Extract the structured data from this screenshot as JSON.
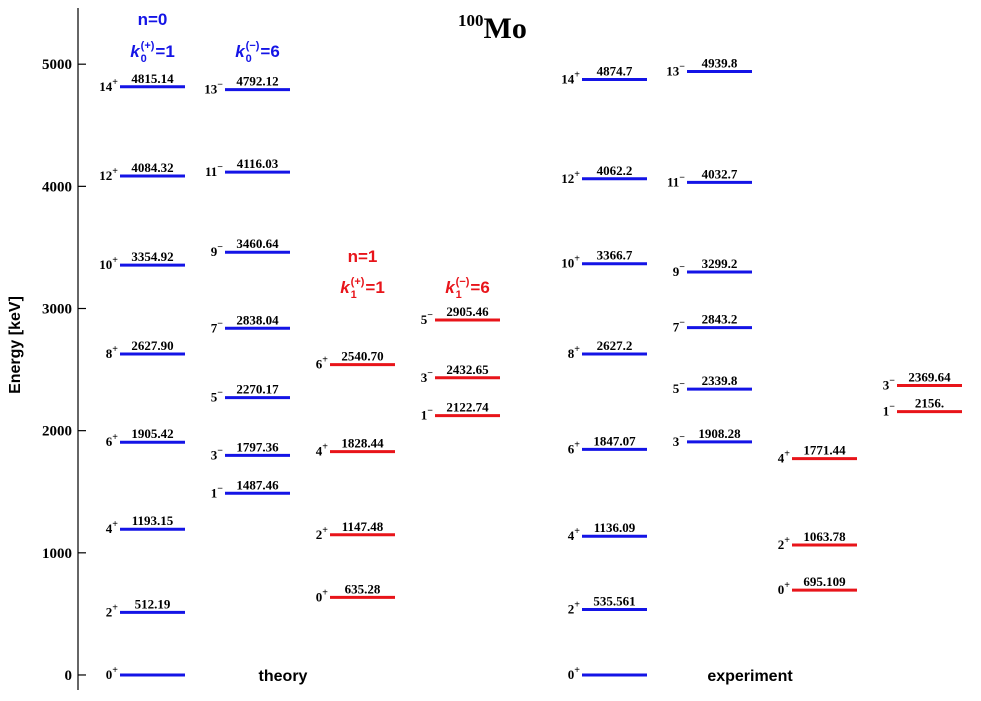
{
  "chart_data": {
    "type": "level-scheme",
    "title": {
      "mass": "100",
      "element": "Mo"
    },
    "ylabel": "Energy [keV]",
    "ylim": [
      -123,
      5460
    ],
    "yticks": [
      0,
      1000,
      2000,
      3000,
      4000,
      5000
    ],
    "group_labels": [
      "theory",
      "experiment"
    ],
    "columns": [
      {
        "color": "#1414e6",
        "n": "n=0",
        "k": {
          "symbol": "k",
          "sub": "0",
          "sup": "(+)",
          "rhs": "=1"
        },
        "values": [
          0,
          512.19,
          1193.15,
          1905.42,
          2627.9,
          3354.92,
          4084.32,
          4815.14
        ],
        "value_labels": [
          null,
          "512.19",
          "1193.15",
          "1905.42",
          "2627.90",
          "3354.92",
          "4084.32",
          "4815.14"
        ],
        "spins": [
          [
            "0",
            "+"
          ],
          [
            "2",
            "+"
          ],
          [
            "4",
            "+"
          ],
          [
            "6",
            "+"
          ],
          [
            "8",
            "+"
          ],
          [
            "10",
            "+"
          ],
          [
            "12",
            "+"
          ],
          [
            "14",
            "+"
          ]
        ]
      },
      {
        "color": "#1414e6",
        "k": {
          "symbol": "k",
          "sub": "0",
          "sup": "(−)",
          "rhs": "=6"
        },
        "values": [
          1487.46,
          1797.36,
          2270.17,
          2838.04,
          3460.64,
          4116.03,
          4792.12
        ],
        "value_labels": [
          "1487.46",
          "1797.36",
          "2270.17",
          "2838.04",
          "3460.64",
          "4116.03",
          "4792.12"
        ],
        "spins": [
          [
            "1",
            "−"
          ],
          [
            "3",
            "−"
          ],
          [
            "5",
            "−"
          ],
          [
            "7",
            "−"
          ],
          [
            "9",
            "−"
          ],
          [
            "11",
            "−"
          ],
          [
            "13",
            "−"
          ]
        ]
      },
      {
        "color": "#e8141a",
        "n": "n=1",
        "k": {
          "symbol": "k",
          "sub": "1",
          "sup": "(+)",
          "rhs": "=1"
        },
        "values": [
          635.28,
          1147.48,
          1828.44,
          2540.7
        ],
        "value_labels": [
          "635.28",
          "1147.48",
          "1828.44",
          "2540.70"
        ],
        "spins": [
          [
            "0",
            "+"
          ],
          [
            "2",
            "+"
          ],
          [
            "4",
            "+"
          ],
          [
            "6",
            "+"
          ]
        ]
      },
      {
        "color": "#e8141a",
        "k": {
          "symbol": "k",
          "sub": "1",
          "sup": "(−)",
          "rhs": "=6"
        },
        "values": [
          2122.74,
          2432.65,
          2905.46
        ],
        "value_labels": [
          "2122.74",
          "2432.65",
          "2905.46"
        ],
        "spins": [
          [
            "1",
            "−"
          ],
          [
            "3",
            "−"
          ],
          [
            "5",
            "−"
          ]
        ]
      },
      {
        "color": "#1414e6",
        "values": [
          0,
          535.561,
          1136.09,
          1847.07,
          2627.2,
          3366.7,
          4062.2,
          4874.7
        ],
        "value_labels": [
          null,
          "535.561",
          "1136.09",
          "1847.07",
          "2627.2",
          "3366.7",
          "4062.2",
          "4874.7"
        ],
        "spins": [
          [
            "0",
            "+"
          ],
          [
            "2",
            "+"
          ],
          [
            "4",
            "+"
          ],
          [
            "6",
            "+"
          ],
          [
            "8",
            "+"
          ],
          [
            "10",
            "+"
          ],
          [
            "12",
            "+"
          ],
          [
            "14",
            "+"
          ]
        ]
      },
      {
        "color": "#1414e6",
        "values": [
          1908.28,
          2339.8,
          2843.2,
          3299.2,
          4032.7,
          4939.8
        ],
        "value_labels": [
          "1908.28",
          "2339.8",
          "2843.2",
          "3299.2",
          "4032.7",
          "4939.8"
        ],
        "spins": [
          [
            "3",
            "−"
          ],
          [
            "5",
            "−"
          ],
          [
            "7",
            "−"
          ],
          [
            "9",
            "−"
          ],
          [
            "11",
            "−"
          ],
          [
            "13",
            "−"
          ]
        ]
      },
      {
        "color": "#e8141a",
        "values": [
          695.109,
          1063.78,
          1771.44
        ],
        "value_labels": [
          "695.109",
          "1063.78",
          "1771.44"
        ],
        "spins": [
          [
            "0",
            "+"
          ],
          [
            "2",
            "+"
          ],
          [
            "4",
            "+"
          ]
        ]
      },
      {
        "color": "#e8141a",
        "values": [
          2156,
          2369.64
        ],
        "value_labels": [
          "2156.",
          "2369.64"
        ],
        "spins": [
          [
            "1",
            "−"
          ],
          [
            "3",
            "−"
          ]
        ]
      }
    ]
  }
}
